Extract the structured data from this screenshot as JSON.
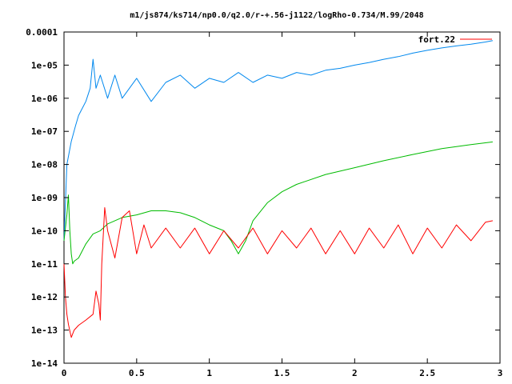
{
  "chart_data": {
    "type": "line",
    "title": "m1/js874/ks714/np0.0/q2.0/r-+.56-j1122/logRho-0.734/M.99/2048",
    "xlabel": "",
    "ylabel": "",
    "xlim": [
      0,
      3
    ],
    "ylim": [
      1e-14,
      0.0001
    ],
    "y_scale": "log",
    "grid": false,
    "legend_position": "top-right",
    "x_ticks": [
      {
        "value": 0,
        "label": "0"
      },
      {
        "value": 0.5,
        "label": "0.5"
      },
      {
        "value": 1,
        "label": "1"
      },
      {
        "value": 1.5,
        "label": "1.5"
      },
      {
        "value": 2,
        "label": "2"
      },
      {
        "value": 2.5,
        "label": "2.5"
      },
      {
        "value": 3,
        "label": "3"
      }
    ],
    "y_ticks": [
      {
        "value": 0.0001,
        "label": "0.0001"
      },
      {
        "value": 1e-05,
        "label": "1e-05"
      },
      {
        "value": 1e-06,
        "label": "1e-06"
      },
      {
        "value": 1e-07,
        "label": "1e-07"
      },
      {
        "value": 1e-08,
        "label": "1e-08"
      },
      {
        "value": 1e-09,
        "label": "1e-09"
      },
      {
        "value": 1e-10,
        "label": "1e-10"
      },
      {
        "value": 1e-11,
        "label": "1e-11"
      },
      {
        "value": 1e-12,
        "label": "1e-12"
      },
      {
        "value": 1e-13,
        "label": "1e-13"
      },
      {
        "value": 1e-14,
        "label": "1e-14"
      }
    ],
    "series": [
      {
        "name": "fort.22",
        "color": "#ff0000",
        "in_legend": true,
        "x": [
          0.0,
          0.01,
          0.02,
          0.03,
          0.05,
          0.07,
          0.1,
          0.15,
          0.2,
          0.22,
          0.24,
          0.25,
          0.26,
          0.28,
          0.3,
          0.35,
          0.4,
          0.45,
          0.5,
          0.55,
          0.6,
          0.7,
          0.8,
          0.9,
          1.0,
          1.1,
          1.2,
          1.3,
          1.4,
          1.5,
          1.6,
          1.7,
          1.8,
          1.9,
          2.0,
          2.1,
          2.2,
          2.3,
          2.4,
          2.5,
          2.6,
          2.7,
          2.8,
          2.9,
          2.95
        ],
        "y": [
          1e-11,
          1e-12,
          3e-13,
          1.5e-13,
          6e-14,
          1e-13,
          1.4e-13,
          2e-13,
          3e-13,
          1.5e-12,
          6e-13,
          2e-13,
          1e-11,
          5e-10,
          1e-10,
          1.5e-11,
          2.5e-10,
          4e-10,
          2e-11,
          1.5e-10,
          3e-11,
          1.2e-10,
          3e-11,
          1.2e-10,
          2e-11,
          1e-10,
          3e-11,
          1.2e-10,
          2e-11,
          1e-10,
          3e-11,
          1.2e-10,
          2e-11,
          1e-10,
          2e-11,
          1.2e-10,
          3e-11,
          1.5e-10,
          2e-11,
          1.2e-10,
          3e-11,
          1.5e-10,
          5e-11,
          1.8e-10,
          2e-10
        ]
      },
      {
        "name": "",
        "color": "#00bb00",
        "in_legend": false,
        "x": [
          0.0,
          0.02,
          0.03,
          0.04,
          0.05,
          0.06,
          0.07,
          0.1,
          0.15,
          0.2,
          0.25,
          0.3,
          0.4,
          0.5,
          0.6,
          0.7,
          0.8,
          0.9,
          1.0,
          1.1,
          1.15,
          1.2,
          1.25,
          1.3,
          1.4,
          1.5,
          1.6,
          1.8,
          2.0,
          2.2,
          2.4,
          2.6,
          2.8,
          2.95
        ],
        "y": [
          5e-11,
          3e-10,
          1.2e-09,
          1e-10,
          2e-11,
          1e-11,
          1.2e-11,
          1.5e-11,
          4e-11,
          8e-11,
          1e-10,
          1.6e-10,
          2.5e-10,
          3e-10,
          4e-10,
          4e-10,
          3.5e-10,
          2.5e-10,
          1.5e-10,
          1e-10,
          5e-11,
          2e-11,
          5e-11,
          2e-10,
          7e-10,
          1.5e-09,
          2.5e-09,
          5e-09,
          8e-09,
          1.3e-08,
          2e-08,
          3e-08,
          4e-08,
          4.8e-08
        ]
      },
      {
        "name": "",
        "color": "#0088ee",
        "in_legend": false,
        "x": [
          0.0,
          0.02,
          0.05,
          0.08,
          0.1,
          0.15,
          0.18,
          0.2,
          0.22,
          0.25,
          0.3,
          0.35,
          0.4,
          0.5,
          0.6,
          0.7,
          0.8,
          0.9,
          1.0,
          1.1,
          1.2,
          1.3,
          1.4,
          1.5,
          1.6,
          1.7,
          1.8,
          1.9,
          2.0,
          2.1,
          2.2,
          2.3,
          2.4,
          2.5,
          2.6,
          2.7,
          2.8,
          2.9,
          2.95
        ],
        "y": [
          5e-11,
          1e-08,
          5e-08,
          1.5e-07,
          3e-07,
          8e-07,
          2e-06,
          1.5e-05,
          2e-06,
          5e-06,
          1e-06,
          5e-06,
          1e-06,
          4e-06,
          8e-07,
          3e-06,
          5e-06,
          2e-06,
          4e-06,
          3e-06,
          6e-06,
          3e-06,
          5e-06,
          4e-06,
          6e-06,
          5e-06,
          7e-06,
          8e-06,
          1e-05,
          1.2e-05,
          1.5e-05,
          1.8e-05,
          2.3e-05,
          2.8e-05,
          3.3e-05,
          3.8e-05,
          4.3e-05,
          5e-05,
          5.5e-05
        ]
      }
    ]
  }
}
